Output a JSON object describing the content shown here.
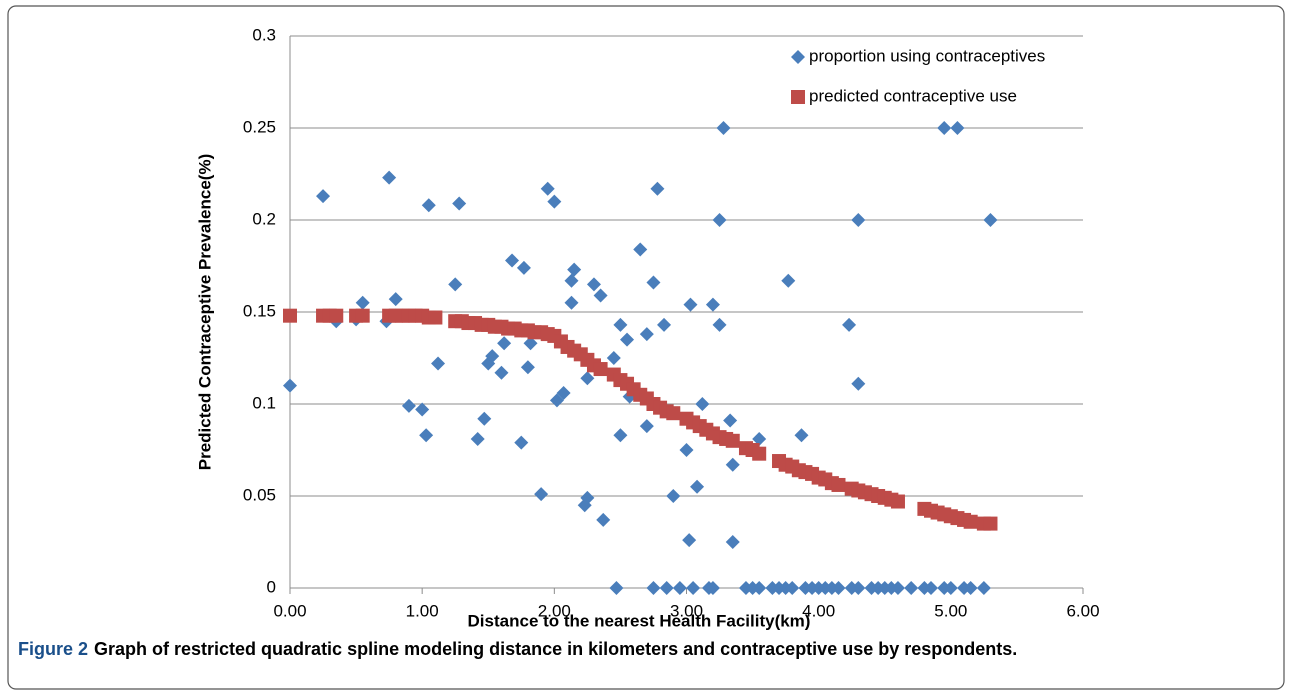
{
  "chart_data": {
    "type": "scatter",
    "xlabel": "Distance to the nearest Health Facility(km)",
    "ylabel": "Predicted Contraceptive Prevalence(%)",
    "caption_label": "Figure 2",
    "caption": "Graph of restricted quadratic spline modeling distance in kilometers and contraceptive use by respondents.",
    "xlim": [
      0,
      6
    ],
    "xticks": [
      {
        "value": 0,
        "label": "0.00"
      },
      {
        "value": 1,
        "label": "1.00"
      },
      {
        "value": 2,
        "label": "2.00"
      },
      {
        "value": 3,
        "label": "3.00"
      },
      {
        "value": 4,
        "label": "4.00"
      },
      {
        "value": 5,
        "label": "5.00"
      },
      {
        "value": 6,
        "label": "6.00"
      }
    ],
    "ylim": [
      0,
      0.3
    ],
    "yticks": [
      0,
      0.05,
      0.1,
      0.15,
      0.2,
      0.25,
      0.3
    ],
    "grid": true,
    "legend": "upper right",
    "series": [
      {
        "name": "proportion using contraceptives",
        "color": "#4a7ebb",
        "marker": "diamond",
        "x": [
          0.0,
          0.25,
          0.35,
          0.5,
          0.55,
          0.73,
          0.75,
          0.8,
          0.9,
          1.0,
          1.03,
          1.05,
          1.12,
          1.25,
          1.28,
          1.42,
          1.47,
          1.5,
          1.53,
          1.6,
          1.62,
          1.68,
          1.75,
          1.77,
          1.8,
          1.82,
          1.9,
          1.95,
          2.0,
          2.02,
          2.07,
          2.13,
          2.13,
          2.15,
          2.23,
          2.25,
          2.25,
          2.3,
          2.35,
          2.37,
          2.45,
          2.47,
          2.5,
          2.5,
          2.55,
          2.57,
          2.65,
          2.7,
          2.7,
          2.75,
          2.75,
          2.78,
          2.83,
          2.85,
          2.9,
          2.95,
          3.0,
          3.02,
          3.03,
          3.05,
          3.08,
          3.12,
          3.17,
          3.2,
          3.2,
          3.25,
          3.25,
          3.28,
          3.33,
          3.35,
          3.35,
          3.45,
          3.5,
          3.55,
          3.55,
          3.65,
          3.7,
          3.75,
          3.77,
          3.8,
          3.87,
          3.9,
          3.95,
          4.0,
          4.05,
          4.1,
          4.15,
          4.23,
          4.25,
          4.3,
          4.3,
          4.3,
          4.4,
          4.45,
          4.5,
          4.55,
          4.6,
          4.7,
          4.8,
          4.85,
          4.95,
          4.95,
          5.0,
          5.05,
          5.1,
          5.15,
          5.25,
          5.3
        ],
        "values": [
          0.11,
          0.213,
          0.145,
          0.146,
          0.155,
          0.145,
          0.223,
          0.157,
          0.099,
          0.097,
          0.083,
          0.208,
          0.122,
          0.165,
          0.209,
          0.081,
          0.092,
          0.122,
          0.126,
          0.117,
          0.133,
          0.178,
          0.079,
          0.174,
          0.12,
          0.133,
          0.051,
          0.217,
          0.21,
          0.102,
          0.106,
          0.167,
          0.155,
          0.173,
          0.045,
          0.049,
          0.114,
          0.165,
          0.159,
          0.037,
          0.125,
          0,
          0.143,
          0.083,
          0.135,
          0.104,
          0.184,
          0.138,
          0.088,
          0.166,
          0,
          0.217,
          0.143,
          0,
          0.05,
          0,
          0.075,
          0.026,
          0.154,
          0,
          0.055,
          0.1,
          0,
          0.154,
          0,
          0.143,
          0.2,
          0.25,
          0.091,
          0.067,
          0.025,
          0,
          0,
          0,
          0.081,
          0,
          0,
          0,
          0.167,
          0,
          0.083,
          0,
          0,
          0,
          0,
          0,
          0,
          0.143,
          0,
          0.2,
          0.111,
          0,
          0,
          0,
          0,
          0,
          0,
          0,
          0,
          0,
          0.25,
          0,
          0,
          0.25,
          0,
          0,
          0,
          0.2
        ]
      },
      {
        "name": "predicted contraceptive use",
        "color": "#be4b48",
        "marker": "square",
        "x": [
          0.0,
          0.25,
          0.3,
          0.35,
          0.5,
          0.55,
          0.75,
          0.8,
          0.85,
          0.9,
          0.95,
          1.0,
          1.05,
          1.1,
          1.25,
          1.3,
          1.35,
          1.4,
          1.45,
          1.5,
          1.55,
          1.6,
          1.65,
          1.7,
          1.75,
          1.8,
          1.85,
          1.9,
          1.95,
          2.0,
          2.05,
          2.1,
          2.15,
          2.2,
          2.25,
          2.3,
          2.35,
          2.45,
          2.5,
          2.55,
          2.6,
          2.65,
          2.7,
          2.75,
          2.8,
          2.85,
          2.9,
          3.0,
          3.05,
          3.1,
          3.15,
          3.2,
          3.25,
          3.3,
          3.35,
          3.45,
          3.5,
          3.55,
          3.7,
          3.75,
          3.8,
          3.85,
          3.9,
          3.95,
          4.0,
          4.05,
          4.1,
          4.15,
          4.25,
          4.3,
          4.35,
          4.4,
          4.45,
          4.5,
          4.55,
          4.6,
          4.8,
          4.85,
          4.9,
          4.95,
          5.0,
          5.05,
          5.1,
          5.15,
          5.25,
          5.3
        ],
        "values": [
          0.148,
          0.148,
          0.148,
          0.148,
          0.148,
          0.148,
          0.148,
          0.148,
          0.148,
          0.148,
          0.148,
          0.148,
          0.147,
          0.147,
          0.145,
          0.145,
          0.144,
          0.144,
          0.143,
          0.143,
          0.142,
          0.142,
          0.141,
          0.141,
          0.14,
          0.14,
          0.139,
          0.139,
          0.138,
          0.137,
          0.134,
          0.131,
          0.129,
          0.127,
          0.124,
          0.121,
          0.119,
          0.116,
          0.113,
          0.111,
          0.108,
          0.105,
          0.103,
          0.1,
          0.098,
          0.096,
          0.095,
          0.092,
          0.09,
          0.088,
          0.086,
          0.084,
          0.082,
          0.081,
          0.08,
          0.076,
          0.075,
          0.073,
          0.069,
          0.067,
          0.066,
          0.064,
          0.063,
          0.062,
          0.06,
          0.059,
          0.057,
          0.056,
          0.054,
          0.053,
          0.052,
          0.051,
          0.05,
          0.049,
          0.048,
          0.047,
          0.043,
          0.042,
          0.041,
          0.04,
          0.039,
          0.038,
          0.037,
          0.036,
          0.035,
          0.035
        ]
      }
    ]
  }
}
